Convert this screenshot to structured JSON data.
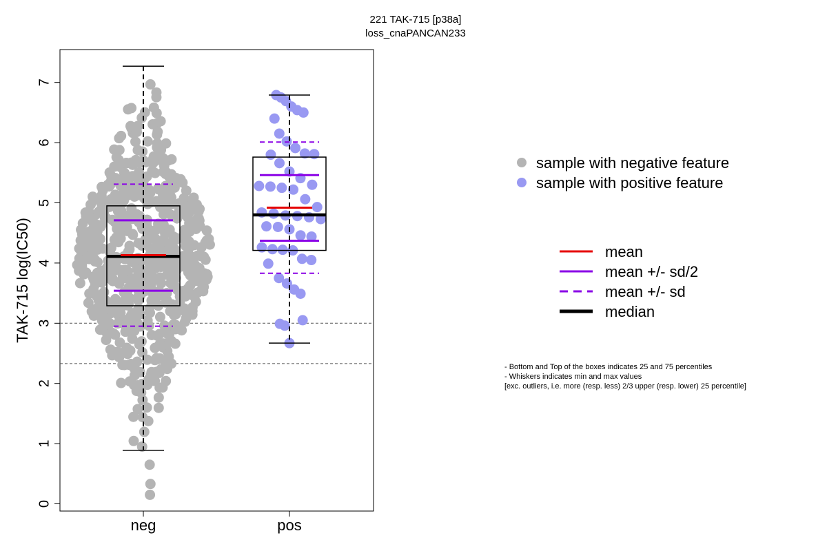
{
  "chart_data": {
    "type": "boxplot",
    "title": "221 TAK-715 [p38a]",
    "subtitle": "loss_cnaPANCAN233",
    "ylabel": "TAK-715 log(IC50)",
    "xlabel": "",
    "ylim": [
      -0.1,
      7.5
    ],
    "yticks": [
      0,
      1,
      2,
      3,
      4,
      5,
      6,
      7
    ],
    "categories": [
      "neg",
      "pos"
    ],
    "reference_lines": [
      3.0,
      2.33
    ],
    "groups": [
      {
        "name": "neg",
        "color": "#b4b4b4",
        "min": 0.89,
        "q1": 3.29,
        "median": 4.11,
        "q3": 4.95,
        "max": 7.27,
        "mean": 4.13,
        "mean_minus_half_sd": 3.54,
        "mean_plus_half_sd": 4.71,
        "mean_minus_sd": 2.95,
        "mean_plus_sd": 5.31,
        "n_points": 700,
        "outliers": [
          0.15,
          0.33,
          0.65
        ]
      },
      {
        "name": "pos",
        "color": "#9999f2",
        "min": 2.67,
        "q1": 4.21,
        "median": 4.8,
        "q3": 5.76,
        "max": 6.79,
        "mean": 4.92,
        "mean_minus_half_sd": 4.37,
        "mean_plus_half_sd": 5.46,
        "mean_minus_sd": 3.83,
        "mean_plus_sd": 6.01,
        "points": [
          6.79,
          6.75,
          6.69,
          6.6,
          6.54,
          6.5,
          6.4,
          6.15,
          6.02,
          5.91,
          5.82,
          5.81,
          5.8,
          5.66,
          5.52,
          5.41,
          5.3,
          5.28,
          5.27,
          5.25,
          5.22,
          5.06,
          4.93,
          4.84,
          4.82,
          4.79,
          4.78,
          4.76,
          4.73,
          4.61,
          4.6,
          4.56,
          4.46,
          4.44,
          4.26,
          4.23,
          4.22,
          4.21,
          4.07,
          4.05,
          3.99,
          3.75,
          3.66,
          3.56,
          3.49,
          3.05,
          2.99,
          2.96,
          2.67
        ]
      }
    ],
    "legend_points": [
      {
        "label": "sample with negative feature",
        "color": "#b4b4b4"
      },
      {
        "label": "sample with positive feature",
        "color": "#9999f2"
      }
    ],
    "legend_lines": [
      {
        "label": "mean",
        "color": "#e60000",
        "style": "solid"
      },
      {
        "label": "mean +/- sd/2",
        "color": "#8a00e6",
        "style": "solid"
      },
      {
        "label": "mean +/- sd",
        "color": "#8a00e6",
        "style": "dashed"
      },
      {
        "label": "median",
        "color": "#000000",
        "style": "thick"
      }
    ],
    "notes": [
      "- Bottom and Top of the boxes indicates 25 and 75 percentiles",
      "- Whiskers indicates min and max values",
      "[exc. outliers, i.e. more (resp. less) 2/3 upper (resp. lower) 25 percentile]"
    ]
  }
}
